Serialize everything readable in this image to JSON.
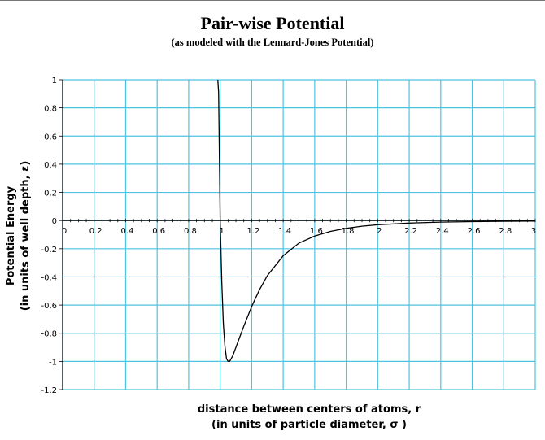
{
  "chart_data": {
    "type": "line",
    "title": "Pair-wise Potential",
    "subtitle": "(as modeled with the Lennard-Jones Potential)",
    "ylabel_lines": [
      "Potential Energy",
      "(in units of well depth, ε)"
    ],
    "xlabel_lines": [
      "distance between centers of atoms, r",
      "(in units of particle diameter, σ )"
    ],
    "xlim": [
      0,
      3
    ],
    "ylim": [
      -1.2,
      1
    ],
    "x_ticks": [
      "0",
      "0.2",
      "0.4",
      "0.6",
      "0.8",
      "1",
      "1.2",
      "1.4",
      "1.6",
      "1.8",
      "2",
      "2.2",
      "2.4",
      "2.6",
      "2.8",
      "3"
    ],
    "y_ticks": [
      "1",
      "0.8",
      "0.6",
      "0.4",
      "0.2",
      "0",
      "-0.2",
      "-0.4",
      "-0.6",
      "-0.8",
      "-1",
      "-1.2"
    ],
    "grid": true,
    "grid_color": "#4fc3df",
    "line_color": "#000000",
    "series": [
      {
        "x": [
          0.99,
          1.0,
          1.01,
          1.02,
          1.03,
          1.04,
          1.05,
          1.06,
          1.07,
          1.08,
          1.09,
          1.1,
          1.12,
          1.15,
          1.2,
          1.25,
          1.3,
          1.4,
          1.5,
          1.6,
          1.7,
          1.8,
          1.9,
          2.0,
          2.2,
          2.4,
          2.6,
          2.8,
          3.0
        ],
        "y": [
          0.91,
          0.0,
          -0.43,
          -0.73,
          -0.89,
          -0.98,
          -1.0,
          -1.0,
          -0.98,
          -0.96,
          -0.93,
          -0.9,
          -0.84,
          -0.75,
          -0.61,
          -0.49,
          -0.39,
          -0.25,
          -0.16,
          -0.11,
          -0.077,
          -0.055,
          -0.04,
          -0.03,
          -0.018,
          -0.011,
          -0.0077,
          -0.0052,
          -0.0037
        ]
      }
    ]
  }
}
